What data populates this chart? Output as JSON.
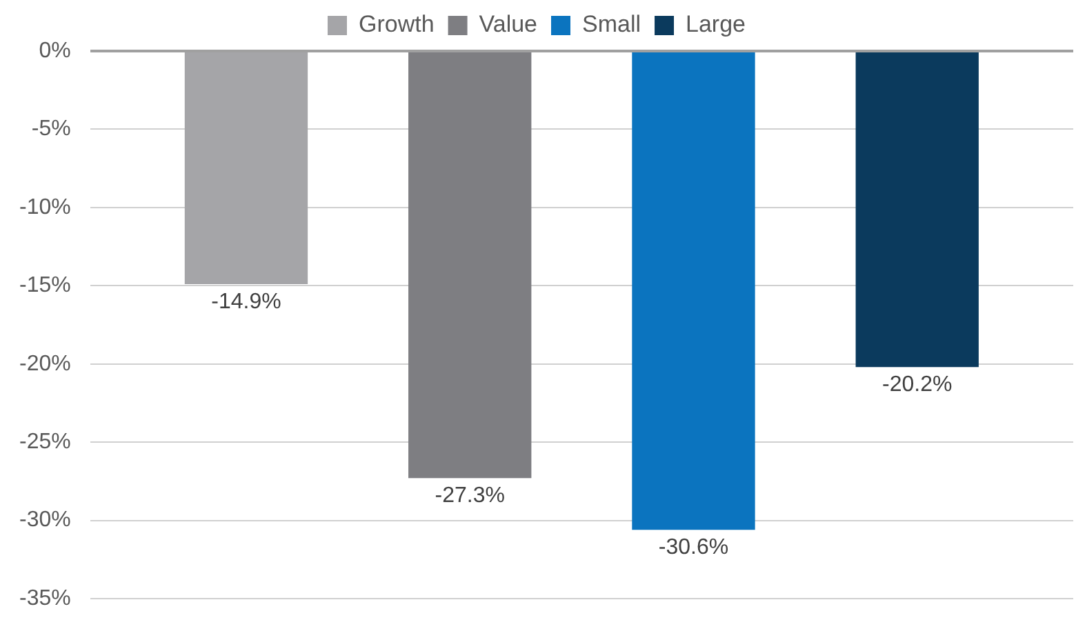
{
  "chart_data": {
    "type": "bar",
    "categories": [
      null
    ],
    "series": [
      {
        "name": "Growth",
        "color": "#a5a5a8",
        "values": [
          -14.9
        ],
        "value_labels": [
          "-14.9%"
        ]
      },
      {
        "name": "Value",
        "color": "#7e7e82",
        "values": [
          -27.3
        ],
        "value_labels": [
          "-27.3%"
        ]
      },
      {
        "name": "Small",
        "color": "#0b74bf",
        "values": [
          -30.6
        ],
        "value_labels": [
          "-30.6%"
        ]
      },
      {
        "name": "Large",
        "color": "#0b3a5d",
        "values": [
          -20.2
        ],
        "value_labels": [
          "-20.2%"
        ]
      }
    ],
    "ylim": [
      -35,
      0
    ],
    "yticks": [
      {
        "value": 0,
        "label": "0%"
      },
      {
        "value": -5,
        "label": "-5%"
      },
      {
        "value": -10,
        "label": "-10%"
      },
      {
        "value": -15,
        "label": "-15%"
      },
      {
        "value": -20,
        "label": "-20%"
      },
      {
        "value": -25,
        "label": "-25%"
      },
      {
        "value": -30,
        "label": "-30%"
      },
      {
        "value": -35,
        "label": "-35%"
      }
    ],
    "grid": "y",
    "legend": "top"
  }
}
